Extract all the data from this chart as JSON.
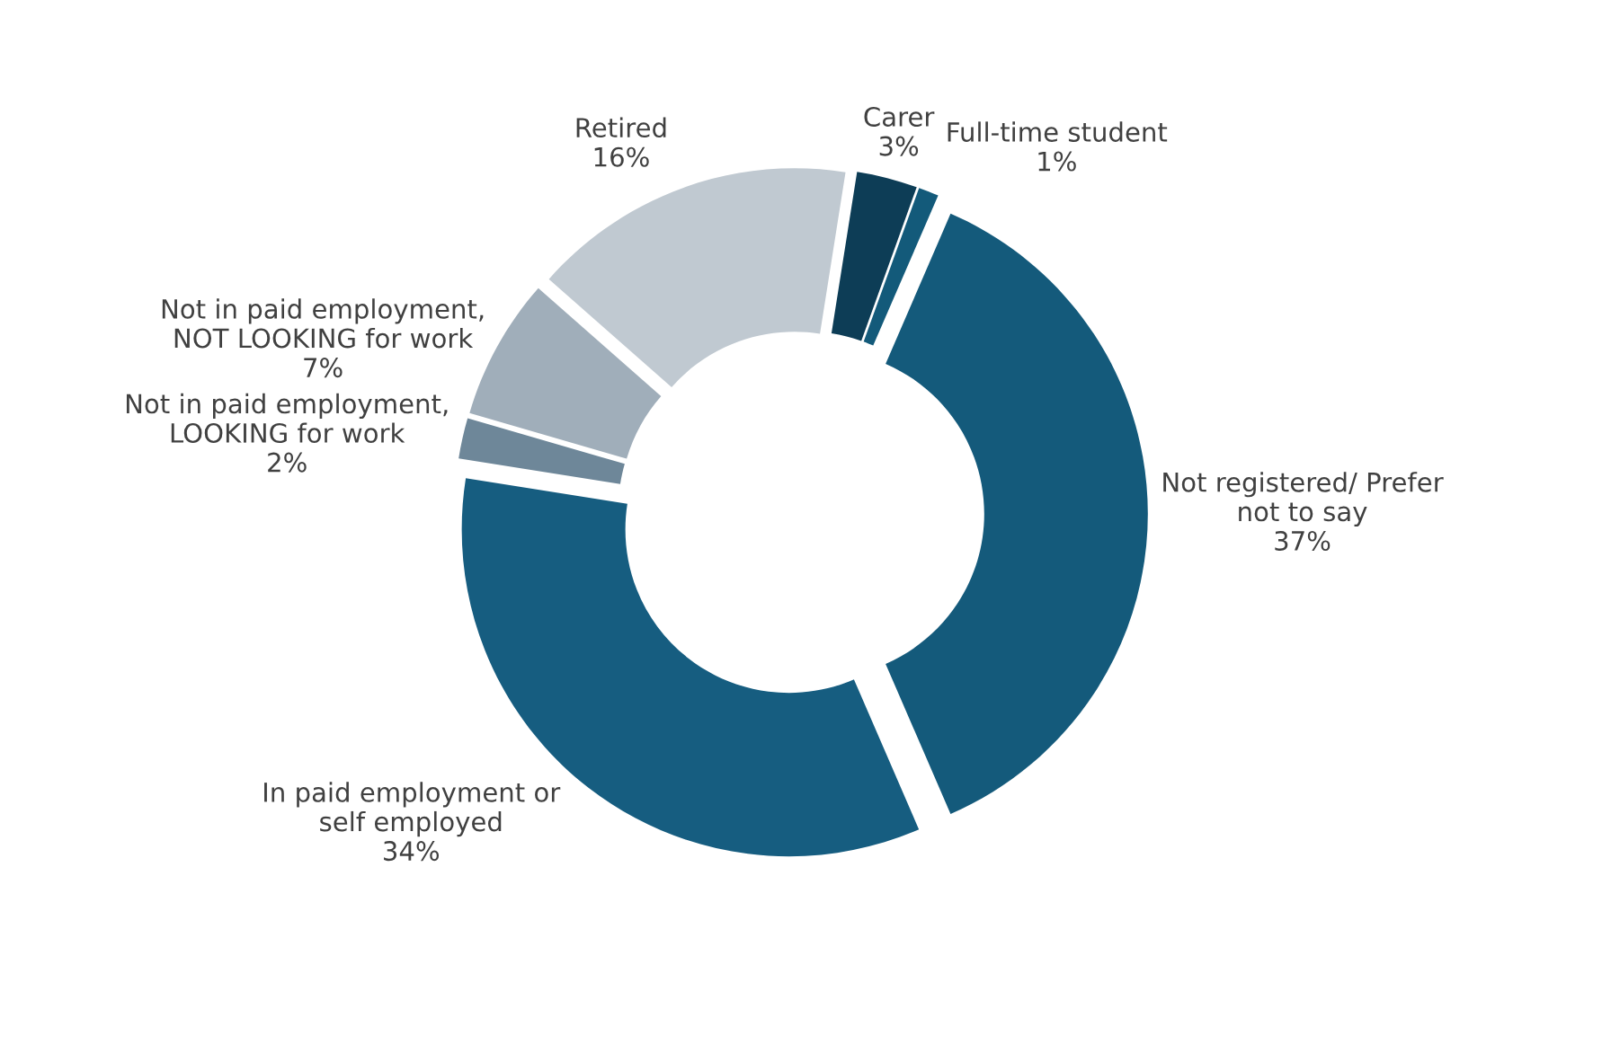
{
  "chart_data": {
    "type": "donut",
    "categories": [
      "Carer",
      "Full-time student",
      "Not registered/ Prefer\nnot to say",
      "In paid employment or\nself employed",
      "Not in paid employment,\nLOOKING for work",
      "Not in paid employment,\nNOT LOOKING for work",
      "Retired"
    ],
    "values": [
      3,
      1,
      37,
      34,
      2,
      7,
      16
    ],
    "colors": [
      "#0d3d56",
      "#135a7a",
      "#145a7b",
      "#165d80",
      "#6e8799",
      "#a0aeba",
      "#c0c9d1"
    ],
    "value_labels": [
      "3%",
      "1%",
      "37%",
      "34%",
      "2%",
      "7%",
      "16%"
    ],
    "legend": false
  }
}
